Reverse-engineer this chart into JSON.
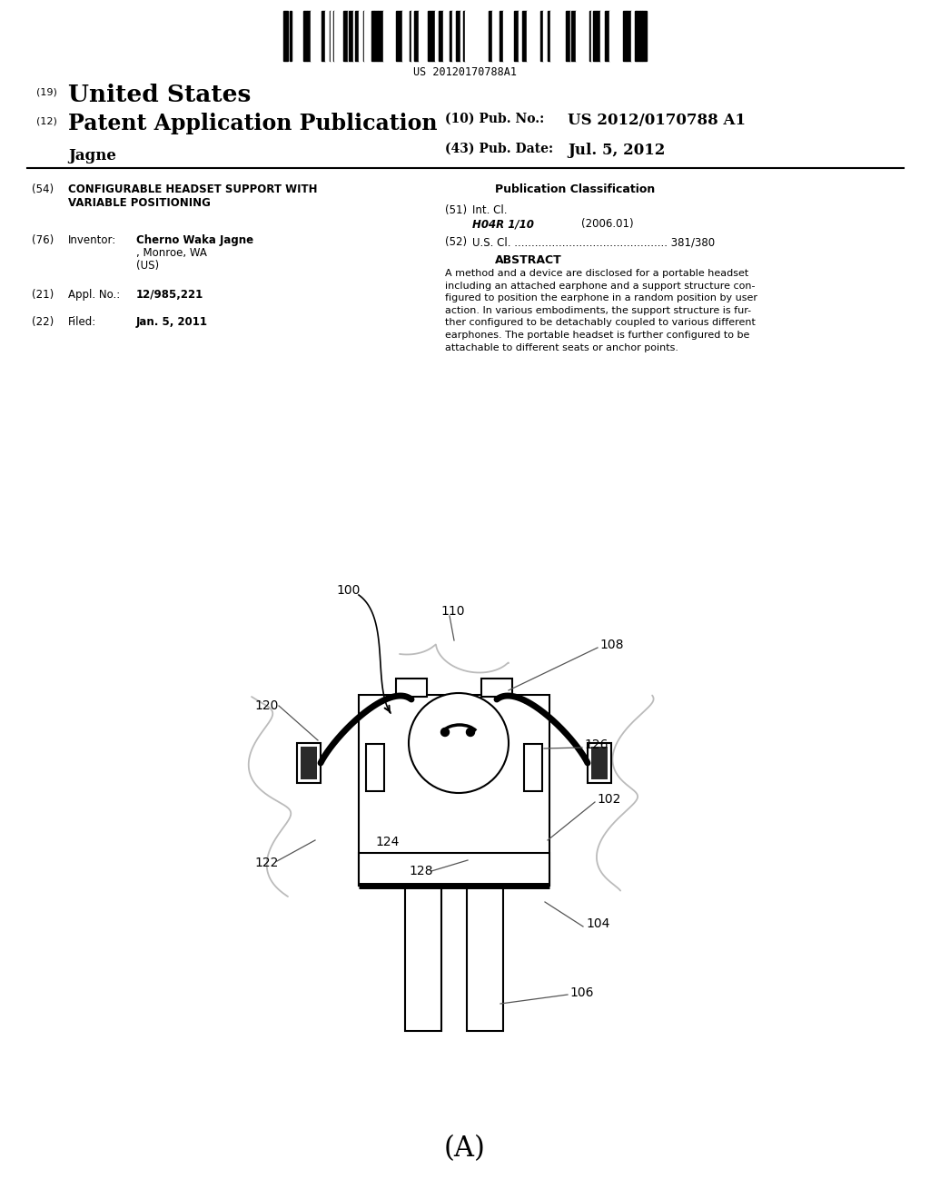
{
  "barcode_text": "US 20120170788A1",
  "bg_color": "#ffffff",
  "text_color": "#000000",
  "fig_label": "(A)"
}
